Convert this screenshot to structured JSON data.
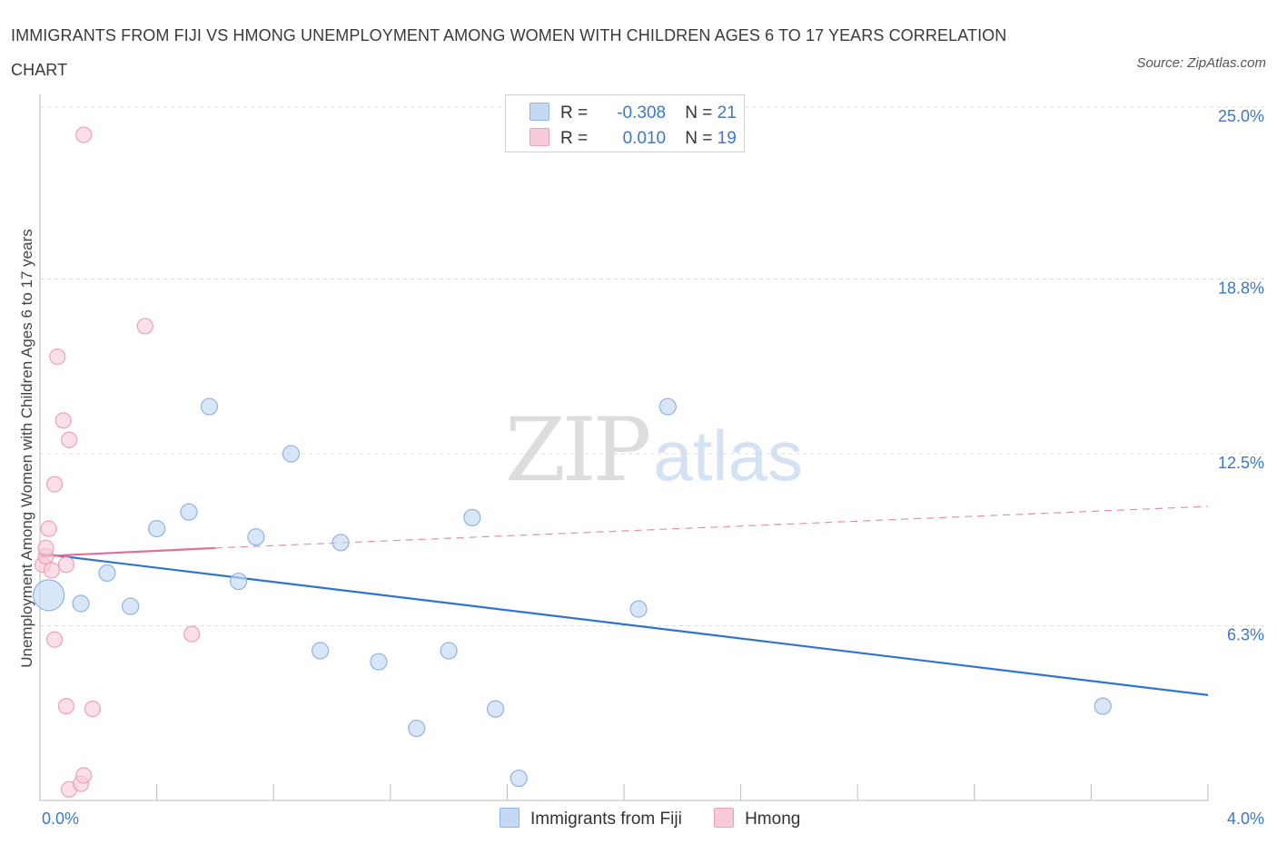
{
  "title": "IMMIGRANTS FROM FIJI VS HMONG UNEMPLOYMENT AMONG WOMEN WITH CHILDREN AGES 6 TO 17 YEARS CORRELATION CHART",
  "source": "Source: ZipAtlas.com",
  "watermark": {
    "zip": "ZIP",
    "atlas": "atlas"
  },
  "legend": {
    "fiji": {
      "r_label": "R =",
      "r_value": "-0.308",
      "n_label": "N =",
      "n_value": "21"
    },
    "hmong": {
      "r_label": "R =",
      "r_value": "0.010",
      "n_label": "N =",
      "n_value": "19"
    }
  },
  "bottom_legend": {
    "fiji": "Immigrants from Fiji",
    "hmong": "Hmong"
  },
  "colors": {
    "fiji_fill": "#c5d9f5",
    "fiji_stroke": "#8fb3e3",
    "fiji_line": "#2f72d2",
    "hmong_fill": "#f9cbd8",
    "hmong_stroke": "#eda0b6",
    "hmong_line": "#e0709a",
    "axis_text": "#3a78c8",
    "grid": "#dcdcdc"
  },
  "chart_data": {
    "type": "scatter",
    "title": "IMMIGRANTS FROM FIJI VS HMONG UNEMPLOYMENT AMONG WOMEN WITH CHILDREN AGES 6 TO 17 YEARS CORRELATION CHART",
    "xlabel": "",
    "ylabel": "Unemployment Among Women with Children Ages 6 to 17 years",
    "xlim": [
      0,
      4.0
    ],
    "ylim": [
      0,
      25.0
    ],
    "x_tick_labels": [
      "0.0%",
      "4.0%"
    ],
    "y_ticks": [
      6.3,
      12.5,
      18.8,
      25.0
    ],
    "y_tick_labels": [
      "6.3%",
      "12.5%",
      "18.8%",
      "25.0%"
    ],
    "grid": "horizontal dashed",
    "legend_position": "top-center",
    "series": [
      {
        "name": "Immigrants from Fiji",
        "points": [
          {
            "x": 0.03,
            "y": 7.4,
            "big": true
          },
          {
            "x": 0.14,
            "y": 7.1
          },
          {
            "x": 0.23,
            "y": 8.2
          },
          {
            "x": 0.31,
            "y": 7.0
          },
          {
            "x": 0.4,
            "y": 9.8
          },
          {
            "x": 0.51,
            "y": 10.4
          },
          {
            "x": 0.58,
            "y": 14.2
          },
          {
            "x": 0.68,
            "y": 7.9
          },
          {
            "x": 0.74,
            "y": 9.5
          },
          {
            "x": 0.86,
            "y": 12.5
          },
          {
            "x": 0.96,
            "y": 5.4
          },
          {
            "x": 1.03,
            "y": 9.3
          },
          {
            "x": 1.16,
            "y": 5.0
          },
          {
            "x": 1.29,
            "y": 2.6
          },
          {
            "x": 1.4,
            "y": 5.4
          },
          {
            "x": 1.48,
            "y": 10.2
          },
          {
            "x": 1.56,
            "y": 3.3
          },
          {
            "x": 1.64,
            "y": 0.8
          },
          {
            "x": 2.05,
            "y": 6.9
          },
          {
            "x": 2.15,
            "y": 14.2
          },
          {
            "x": 3.64,
            "y": 3.4
          }
        ],
        "trend": {
          "x": [
            0.0,
            4.0
          ],
          "y": [
            8.9,
            3.8
          ]
        }
      },
      {
        "name": "Hmong",
        "points": [
          {
            "x": 0.01,
            "y": 8.5
          },
          {
            "x": 0.02,
            "y": 8.8
          },
          {
            "x": 0.02,
            "y": 9.1
          },
          {
            "x": 0.03,
            "y": 9.8
          },
          {
            "x": 0.04,
            "y": 8.3
          },
          {
            "x": 0.05,
            "y": 11.4
          },
          {
            "x": 0.05,
            "y": 5.8
          },
          {
            "x": 0.06,
            "y": 16.0
          },
          {
            "x": 0.08,
            "y": 13.7
          },
          {
            "x": 0.09,
            "y": 3.4
          },
          {
            "x": 0.09,
            "y": 8.5
          },
          {
            "x": 0.1,
            "y": 13.0
          },
          {
            "x": 0.1,
            "y": 0.4
          },
          {
            "x": 0.14,
            "y": 0.6
          },
          {
            "x": 0.15,
            "y": 0.9
          },
          {
            "x": 0.15,
            "y": 24.0
          },
          {
            "x": 0.18,
            "y": 3.3
          },
          {
            "x": 0.36,
            "y": 17.1
          },
          {
            "x": 0.52,
            "y": 6.0
          }
        ],
        "trend_solid": {
          "x": [
            0.0,
            0.6
          ],
          "y": [
            8.8,
            9.1
          ]
        },
        "trend_dashed": {
          "x": [
            0.6,
            4.0
          ],
          "y": [
            9.1,
            10.6
          ]
        }
      }
    ]
  }
}
